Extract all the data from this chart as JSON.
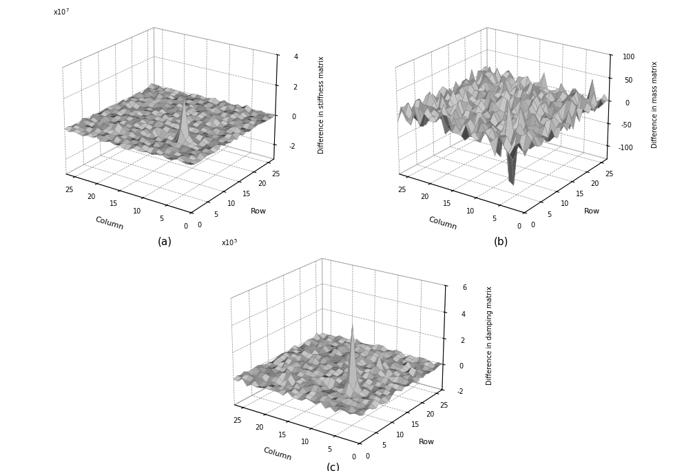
{
  "n": 28,
  "subplot_titles": [
    "(a)",
    "(b)",
    "(c)"
  ],
  "zlabels": [
    "Difference in stiffness matrix",
    "Difference in mass matrix",
    "Difference in damping matrix"
  ],
  "xlabel": "Column",
  "ylabel": "Row",
  "zlims_a": [
    -30000000.0,
    40000000.0
  ],
  "zlims_b": [
    -130,
    100
  ],
  "zlims_c": [
    -200000.0,
    600000.0
  ],
  "zticks_a": [
    -20000000.0,
    0,
    20000000.0,
    40000000.0
  ],
  "ztick_labels_a": [
    "-2",
    "0",
    "2",
    "4"
  ],
  "zticks_b": [
    -100,
    -50,
    0,
    50,
    100
  ],
  "ztick_labels_b": [
    "-100",
    "-50",
    "0",
    "50",
    "100"
  ],
  "zticks_c": [
    -200000.0,
    0,
    200000.0,
    400000.0,
    600000.0
  ],
  "ztick_labels_c": [
    "-2",
    "0",
    "2",
    "4",
    "6"
  ],
  "background_color": "#ffffff",
  "surface_color": "#cccccc",
  "edge_color": "#888888",
  "seed_a": 42,
  "seed_b": 123,
  "seed_c": 77,
  "elev": 22,
  "azim": -55
}
